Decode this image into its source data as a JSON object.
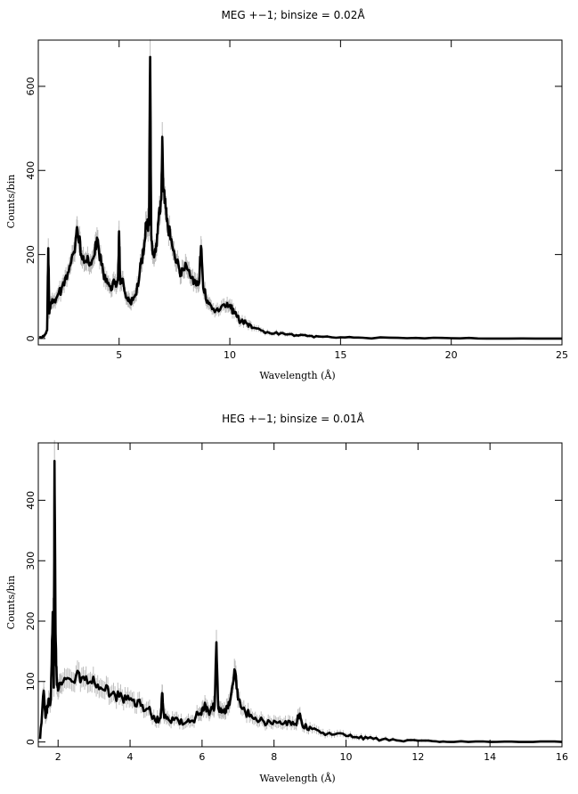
{
  "chart_data": [
    {
      "type": "line",
      "title": "MEG +−1; binsize = 0.02Å",
      "xlabel": "Wavelength (Å)",
      "ylabel": "Counts/bin",
      "xlim": [
        1.35,
        25
      ],
      "ylim": [
        -15,
        710
      ],
      "xticks": [
        5,
        10,
        15,
        20,
        25
      ],
      "yticks": [
        0,
        200,
        400,
        600
      ],
      "series": [
        {
          "x": [
            1.4,
            1.6,
            1.75,
            1.8,
            1.85,
            1.9,
            2.0,
            2.2,
            2.4,
            2.6,
            2.8,
            3.0,
            3.1,
            3.2,
            3.3,
            3.5,
            3.7,
            3.9,
            4.0,
            4.2,
            4.4,
            4.6,
            4.8,
            4.95,
            5.0,
            5.05,
            5.2,
            5.4,
            5.5,
            5.7,
            5.9,
            6.0,
            6.1,
            6.2,
            6.3,
            6.35,
            6.4,
            6.45,
            6.5,
            6.6,
            6.7,
            6.8,
            6.9,
            6.95,
            7.0,
            7.1,
            7.2,
            7.4,
            7.6,
            7.8,
            8.0,
            8.2,
            8.4,
            8.6,
            8.7,
            8.8,
            9.0,
            9.2,
            9.5,
            9.8,
            10.0,
            10.2,
            10.5,
            10.8,
            11.0,
            11.5,
            12.0,
            12.5,
            13.0,
            13.5,
            14.0,
            15.0,
            16.0,
            18.0,
            20.0,
            22.0,
            25.0
          ],
          "y": [
            2,
            5,
            20,
            215,
            60,
            80,
            85,
            100,
            120,
            150,
            175,
            205,
            265,
            240,
            195,
            185,
            180,
            200,
            240,
            175,
            135,
            125,
            130,
            140,
            255,
            130,
            130,
            90,
            85,
            100,
            140,
            190,
            200,
            275,
            270,
            270,
            670,
            250,
            210,
            200,
            220,
            300,
            330,
            480,
            350,
            310,
            270,
            220,
            180,
            150,
            180,
            150,
            140,
            130,
            220,
            120,
            90,
            70,
            65,
            75,
            80,
            60,
            40,
            35,
            25,
            18,
            12,
            10,
            8,
            6,
            5,
            3,
            2,
            1,
            1,
            0,
            0
          ]
        }
      ]
    },
    {
      "type": "line",
      "title": "HEG +−1; binsize = 0.01Å",
      "xlabel": "Wavelength (Å)",
      "ylabel": "Counts/bin",
      "xlim": [
        1.45,
        16
      ],
      "ylim": [
        -8,
        495
      ],
      "xticks": [
        2,
        4,
        6,
        8,
        10,
        12,
        14,
        16
      ],
      "yticks": [
        0,
        100,
        200,
        300,
        400
      ],
      "series": [
        {
          "x": [
            1.5,
            1.6,
            1.65,
            1.7,
            1.8,
            1.85,
            1.88,
            1.9,
            1.93,
            1.96,
            2.0,
            2.1,
            2.3,
            2.5,
            2.7,
            2.9,
            3.1,
            3.3,
            3.5,
            3.7,
            3.9,
            4.1,
            4.3,
            4.5,
            4.7,
            4.85,
            4.9,
            4.95,
            5.1,
            5.3,
            5.5,
            5.7,
            5.9,
            6.0,
            6.1,
            6.2,
            6.3,
            6.35,
            6.4,
            6.45,
            6.5,
            6.6,
            6.7,
            6.8,
            6.9,
            7.0,
            7.2,
            7.4,
            7.6,
            7.8,
            8.0,
            8.2,
            8.4,
            8.6,
            8.7,
            8.8,
            9.0,
            9.3,
            9.6,
            10.0,
            10.3,
            10.6,
            11.0,
            11.5,
            12.0,
            12.5,
            13.0,
            14.0,
            15.0,
            16.0
          ],
          "y": [
            5,
            85,
            40,
            60,
            70,
            215,
            90,
            465,
            180,
            110,
            85,
            95,
            105,
            110,
            108,
            100,
            95,
            85,
            80,
            75,
            70,
            70,
            60,
            55,
            35,
            40,
            80,
            40,
            35,
            40,
            30,
            35,
            45,
            55,
            60,
            45,
            55,
            60,
            165,
            55,
            50,
            50,
            60,
            75,
            120,
            70,
            50,
            40,
            35,
            30,
            35,
            30,
            35,
            30,
            45,
            25,
            25,
            15,
            12,
            10,
            8,
            6,
            4,
            2,
            2,
            1,
            0,
            0,
            0,
            0
          ]
        }
      ]
    }
  ]
}
